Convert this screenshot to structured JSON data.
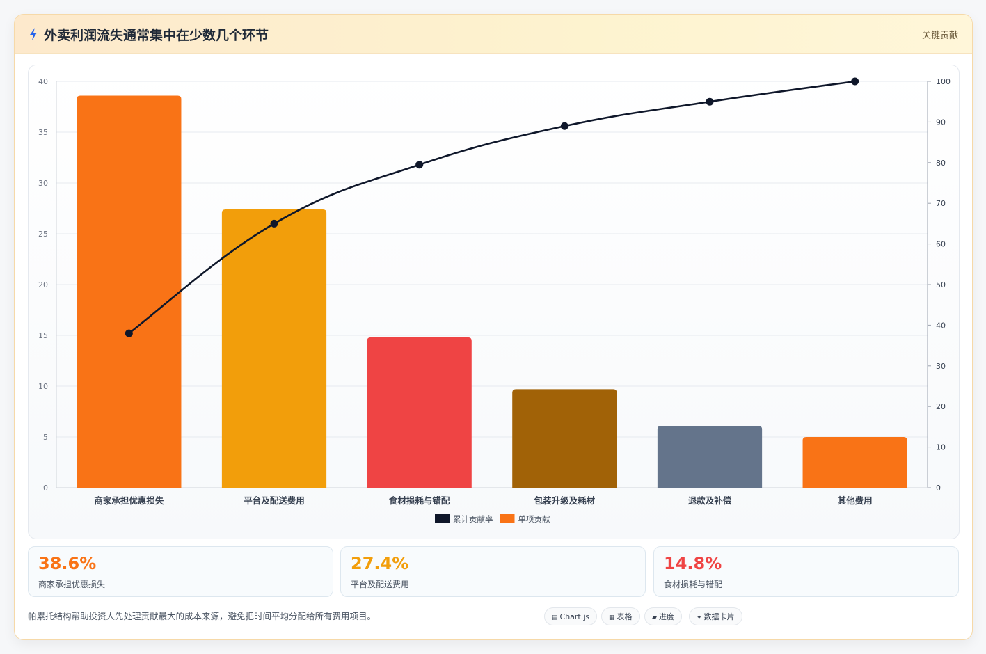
{
  "header": {
    "title": "外卖利润流失通常集中在少数几个环节",
    "tag": "关键贡献",
    "icon": "lightning-icon"
  },
  "colors": {
    "orange": "#f97316",
    "amber": "#f29e0b",
    "red": "#ef4444",
    "brown": "#a16207",
    "slate": "#64748b",
    "line": "#0f172a"
  },
  "chart_data": {
    "type": "bar",
    "categories": [
      "商家承担优惠损失",
      "平台及配送费用",
      "食材损耗与错配",
      "包装升级及耗材",
      "退款及补偿",
      "其他费用"
    ],
    "series": [
      {
        "name": "单项贡献",
        "type": "bar",
        "axis": "left",
        "values": [
          38.6,
          27.4,
          14.8,
          9.7,
          6.1,
          5.0
        ],
        "colors": [
          "#f97316",
          "#f29e0b",
          "#ef4444",
          "#a16207",
          "#64748b",
          "#f97316"
        ]
      },
      {
        "name": "累计贡献率",
        "type": "line",
        "axis": "right",
        "values": [
          38.0,
          65.0,
          79.5,
          89.0,
          95.0,
          100.0
        ],
        "color": "#0f172a"
      }
    ],
    "y_left": {
      "min": 0,
      "max": 40,
      "ticks": [
        0,
        5,
        10,
        15,
        20,
        25,
        30,
        35,
        40
      ]
    },
    "y_right": {
      "min": 0,
      "max": 100,
      "ticks": [
        0,
        10,
        20,
        30,
        40,
        50,
        60,
        70,
        80,
        90,
        100
      ]
    },
    "legend": {
      "position": "bottom",
      "items": [
        {
          "label": "累计贡献率",
          "color": "#0f172a"
        },
        {
          "label": "单项贡献",
          "color": "#f97316"
        }
      ]
    },
    "grid": true
  },
  "stats": [
    {
      "value": "38.6%",
      "label": "商家承担优惠损失",
      "color": "#f97316"
    },
    {
      "value": "27.4%",
      "label": "平台及配送费用",
      "color": "#f29e0b"
    },
    {
      "value": "14.8%",
      "label": "食材损耗与错配",
      "color": "#ef4444"
    }
  ],
  "footer": {
    "note": "帕累托结构帮助投资人先处理贡献最大的成本来源，避免把时间平均分配给所有费用项目。",
    "pills": [
      {
        "label": "Chart.js",
        "glyph": "▤",
        "icon": "chart-icon"
      },
      {
        "label": "表格",
        "glyph": "▦",
        "icon": "table-icon"
      },
      {
        "label": "进度",
        "glyph": "▰",
        "icon": "progress-icon"
      },
      {
        "label": "数据卡片",
        "glyph": "✦",
        "icon": "card-icon"
      }
    ]
  }
}
